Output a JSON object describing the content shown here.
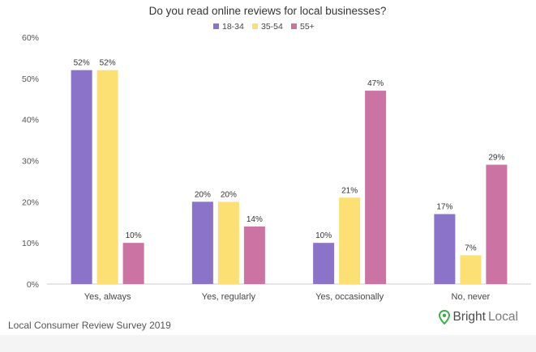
{
  "chart_data": {
    "type": "bar",
    "title": "Do you read online reviews for local businesses?",
    "categories": [
      "Yes, always",
      "Yes, regularly",
      "Yes, occasionally",
      "No, never"
    ],
    "series": [
      {
        "name": "18-34",
        "color": "#8a73c8",
        "values": [
          52,
          20,
          10,
          17
        ],
        "labels": [
          "52%",
          "20%",
          "10%",
          "17%"
        ]
      },
      {
        "name": "35-54",
        "color": "#fde073",
        "values": [
          52,
          20,
          21,
          7
        ],
        "labels": [
          "52%",
          "20%",
          "21%",
          "7%"
        ]
      },
      {
        "name": "55+",
        "color": "#cb74a4",
        "values": [
          10,
          14,
          47,
          29
        ],
        "labels": [
          "10%",
          "14%",
          "47%",
          "29%"
        ]
      }
    ],
    "ylim": [
      0,
      60
    ],
    "yticks": [
      "0%",
      "10%",
      "20%",
      "30%",
      "40%",
      "50%",
      "60%"
    ],
    "legend_position": "top-center",
    "grid": false
  },
  "footer": {
    "source": "Local Consumer Review Survey 2019"
  },
  "brand": {
    "part1": "Bright",
    "part2": "Local",
    "icon": "map-pin-icon",
    "color": "#3fae4a"
  }
}
